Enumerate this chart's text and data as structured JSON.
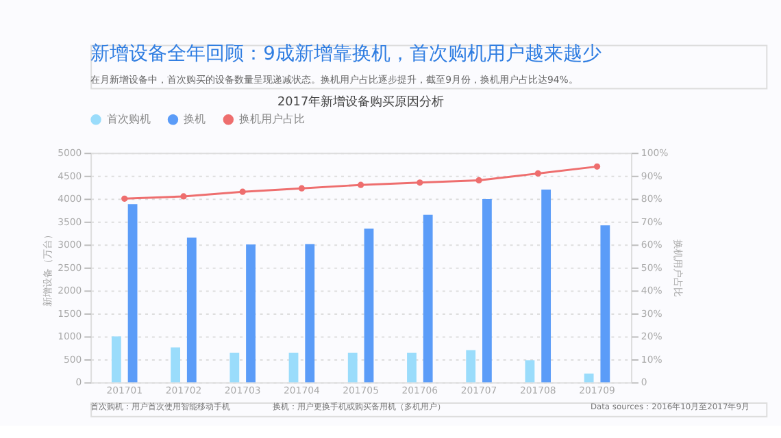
{
  "chart_data": {
    "type": "bar",
    "title": "新增设备全年回顾：9成新增靠换机，首次购机用户越来越少",
    "subtitle": "在月新增设备中，首次购买的设备数量呈现递减状态。换机用户占比逐步提升，截至9月份，换机用户占比达94%。",
    "annotations": [
      "2017年新增设备购买原因分析",
      "首次购机：用户首次使用智能移动手机",
      "换机：用户更换手机或购买备用机（多机用户）",
      "Data sources：2016年10月至2017年9月"
    ],
    "categories": [
      "201701",
      "201702",
      "201703",
      "201704",
      "201705",
      "201706",
      "201707",
      "201708",
      "201709"
    ],
    "series": [
      {
        "name": "首次购机",
        "color": "#9adcfb",
        "values": [
          1000,
          760,
          640,
          640,
          640,
          640,
          700,
          480,
          190
        ]
      },
      {
        "name": "换机",
        "color": "#5b9cf8",
        "values": [
          3880,
          3150,
          3000,
          3010,
          3350,
          3650,
          3990,
          4200,
          3420
        ]
      },
      {
        "name": "换机用户占比",
        "color": "#ee6e6e",
        "type": "line",
        "axis": "y2",
        "values": [
          80,
          81,
          83,
          84.5,
          86,
          87,
          88,
          91,
          94
        ]
      }
    ],
    "ylabel": "新增设备（万台）",
    "y2label": "换机用户占比",
    "ylim": [
      0,
      5000
    ],
    "yticks": [
      0,
      500,
      1000,
      1500,
      2000,
      2500,
      3000,
      3500,
      4000,
      4500,
      5000
    ],
    "y2lim": [
      0,
      100
    ],
    "y2ticks": [
      0,
      {
        "value": 10,
        "label": "10%"
      },
      {
        "value": 20,
        "label": "20%"
      },
      {
        "value": 30,
        "label": "30%"
      },
      {
        "value": 40,
        "label": "40%"
      },
      {
        "value": 50,
        "label": "50%"
      },
      {
        "value": 60,
        "label": "60%"
      },
      {
        "value": 70,
        "label": "70%"
      },
      {
        "value": 80,
        "label": "80%"
      },
      {
        "value": 90,
        "label": "90%"
      },
      {
        "value": 100,
        "label": "100%"
      }
    ],
    "grid": "y",
    "legend": "top",
    "marker": "circle"
  }
}
